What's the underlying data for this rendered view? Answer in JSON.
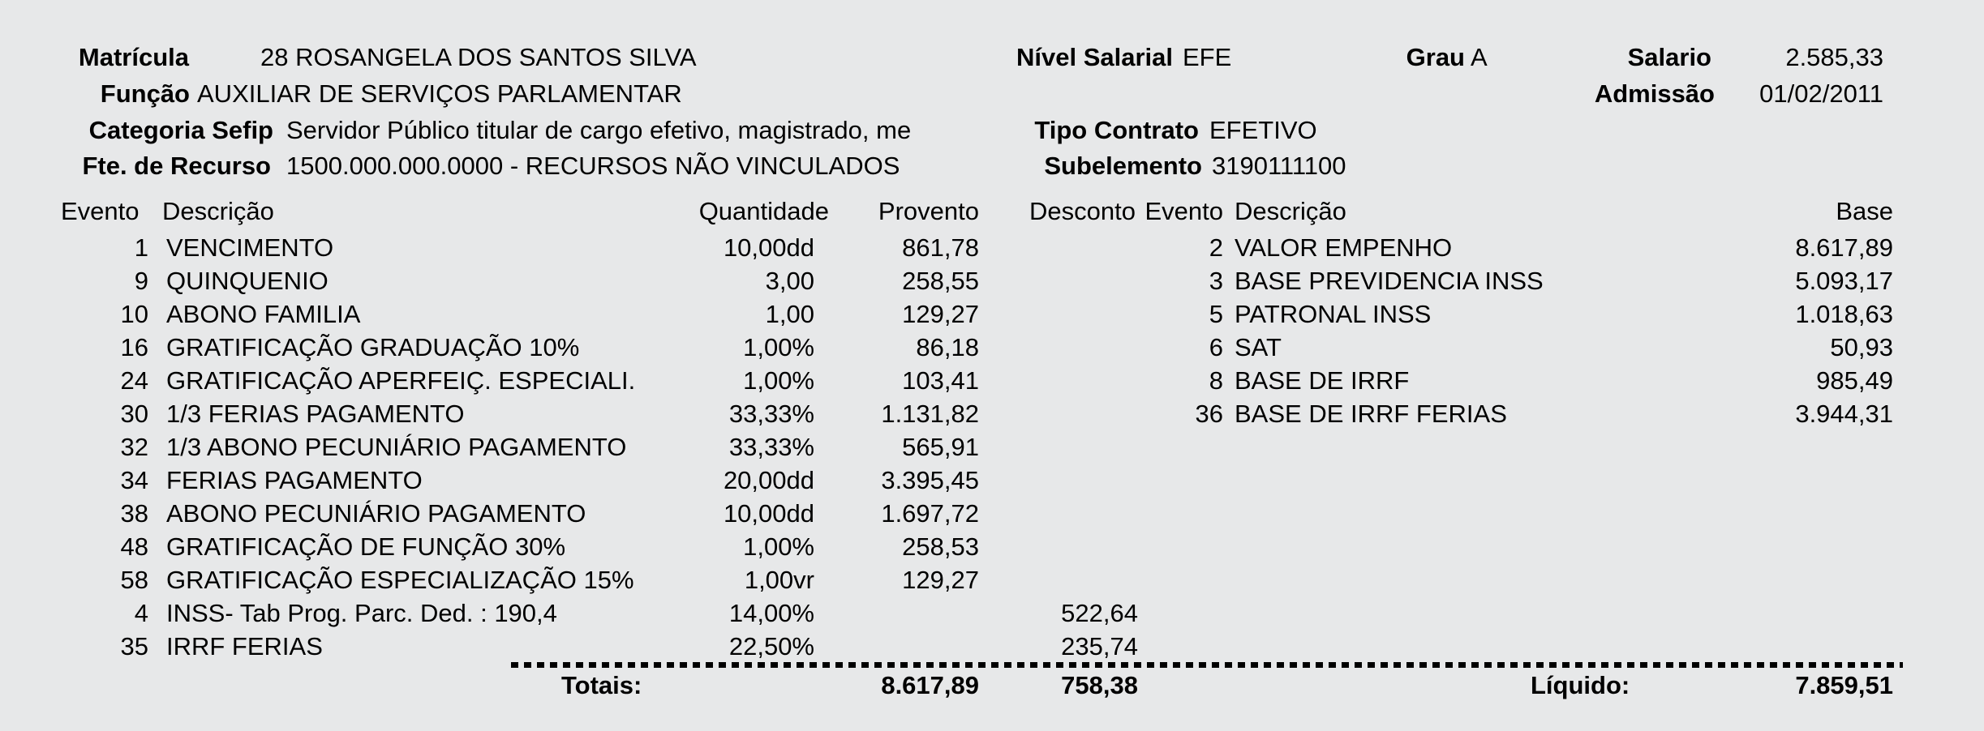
{
  "page": {
    "background_color": "#e7e8e9",
    "text_color": "#000000"
  },
  "header": {
    "fields": [
      {
        "id": "matricula",
        "label": "Matrícula",
        "value": "28 ROSANGELA DOS SANTOS SILVA"
      },
      {
        "id": "funcao",
        "label": "Função",
        "value": "AUXILIAR DE SERVIÇOS PARLAMENTAR"
      },
      {
        "id": "categoria-sefip",
        "label": "Categoria Sefip",
        "value": "Servidor Público titular de cargo efetivo, magistrado, me"
      },
      {
        "id": "fte-de-recurso",
        "label": "Fte. de Recurso",
        "value": "1500.000.000.0000 - RECURSOS NÃO VINCULADOS"
      },
      {
        "id": "nivel-salarial",
        "label": "Nível Salarial",
        "value": "EFE"
      },
      {
        "id": "grau",
        "label": "Grau",
        "value": "A"
      },
      {
        "id": "salario",
        "label": "Salario",
        "value": "2.585,33"
      },
      {
        "id": "admissao",
        "label": "Admissão",
        "value": "01/02/2011"
      },
      {
        "id": "tipo-contrato",
        "label": "Tipo Contrato",
        "value": "EFETIVO"
      },
      {
        "id": "subelemento",
        "label": "Subelemento",
        "value": "3190111100"
      }
    ]
  },
  "events_table": {
    "left_columns": [
      "Evento",
      "Descrição",
      "Quantidade",
      "Provento",
      "Desconto"
    ],
    "right_columns": [
      "Evento",
      "Descrição",
      "Base"
    ],
    "left_rows": [
      {
        "evento": "1",
        "descricao": "VENCIMENTO",
        "quantidade": "10,00dd",
        "provento": "861,78",
        "desconto": ""
      },
      {
        "evento": "9",
        "descricao": "QUINQUENIO",
        "quantidade": "3,00",
        "provento": "258,55",
        "desconto": ""
      },
      {
        "evento": "10",
        "descricao": "ABONO FAMILIA",
        "quantidade": "1,00",
        "provento": "129,27",
        "desconto": ""
      },
      {
        "evento": "16",
        "descricao": "GRATIFICAÇÃO GRADUAÇÃO 10%",
        "quantidade": "1,00%",
        "provento": "86,18",
        "desconto": ""
      },
      {
        "evento": "24",
        "descricao": "GRATIFICAÇÃO APERFEIÇ. ESPECIALI.",
        "quantidade": "1,00%",
        "provento": "103,41",
        "desconto": ""
      },
      {
        "evento": "30",
        "descricao": "1/3 FERIAS PAGAMENTO",
        "quantidade": "33,33%",
        "provento": "1.131,82",
        "desconto": ""
      },
      {
        "evento": "32",
        "descricao": "1/3 ABONO PECUNIÁRIO PAGAMENTO",
        "quantidade": "33,33%",
        "provento": "565,91",
        "desconto": ""
      },
      {
        "evento": "34",
        "descricao": "FERIAS PAGAMENTO",
        "quantidade": "20,00dd",
        "provento": "3.395,45",
        "desconto": ""
      },
      {
        "evento": "38",
        "descricao": "ABONO PECUNIÁRIO PAGAMENTO",
        "quantidade": "10,00dd",
        "provento": "1.697,72",
        "desconto": ""
      },
      {
        "evento": "48",
        "descricao": "GRATIFICAÇÃO DE FUNÇÃO 30%",
        "quantidade": "1,00%",
        "provento": "258,53",
        "desconto": ""
      },
      {
        "evento": "58",
        "descricao": "GRATIFICAÇÃO ESPECIALIZAÇÃO 15%",
        "quantidade": "1,00vr",
        "provento": "129,27",
        "desconto": ""
      },
      {
        "evento": "4",
        "descricao": "INSS- Tab Prog. Parc. Ded. : 190,4",
        "quantidade": "14,00%",
        "provento": "",
        "desconto": "522,64"
      },
      {
        "evento": "35",
        "descricao": "IRRF FERIAS",
        "quantidade": "22,50%",
        "provento": "",
        "desconto": "235,74"
      }
    ],
    "right_rows": [
      {
        "evento": "2",
        "descricao": "VALOR EMPENHO",
        "base": "8.617,89"
      },
      {
        "evento": "3",
        "descricao": "BASE PREVIDENCIA INSS",
        "base": "5.093,17"
      },
      {
        "evento": "5",
        "descricao": "PATRONAL INSS",
        "base": "1.018,63"
      },
      {
        "evento": "6",
        "descricao": "SAT",
        "base": "50,93"
      },
      {
        "evento": "8",
        "descricao": "BASE DE IRRF",
        "base": "985,49"
      },
      {
        "evento": "36",
        "descricao": "BASE DE IRRF FERIAS",
        "base": "3.944,31"
      }
    ],
    "totals": {
      "label": "Totais:",
      "provento_total": "8.617,89",
      "desconto_total": "758,38",
      "liquido_label": "Líquido:",
      "liquido_value": "7.859,51"
    }
  }
}
